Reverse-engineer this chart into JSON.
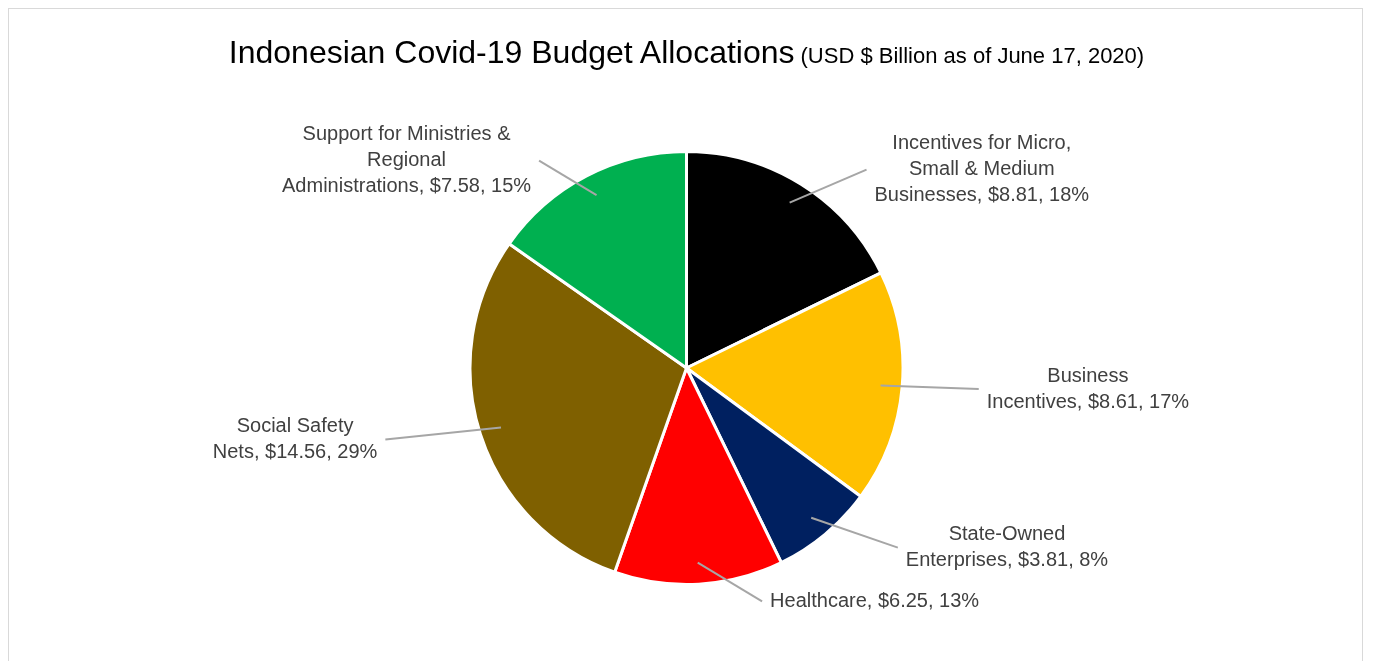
{
  "chart_data": {
    "type": "pie",
    "title": "Indonesian Covid-19 Budget Allocations",
    "subtitle": "(USD $ Billion as of June 17, 2020)",
    "categories": [
      "Incentives for Micro, Small & Medium Businesses",
      "Business Incentives",
      "State-Owned Enterprises",
      "Healthcare",
      "Social Safety Nets",
      "Support for Ministries & Regional Administrations"
    ],
    "values": [
      8.81,
      8.61,
      3.81,
      6.25,
      14.56,
      7.58
    ],
    "value_labels": [
      "$8.81, 18%",
      "$8.61, 17%",
      "$3.81, 8%",
      "$6.25, 13%",
      "$14.56, 29%",
      "$7.58, 15%"
    ],
    "colors": [
      "#000000",
      "#ffc000",
      "#002060",
      "#ff0000",
      "#7f6000",
      "#00b050"
    ],
    "legend": false
  }
}
